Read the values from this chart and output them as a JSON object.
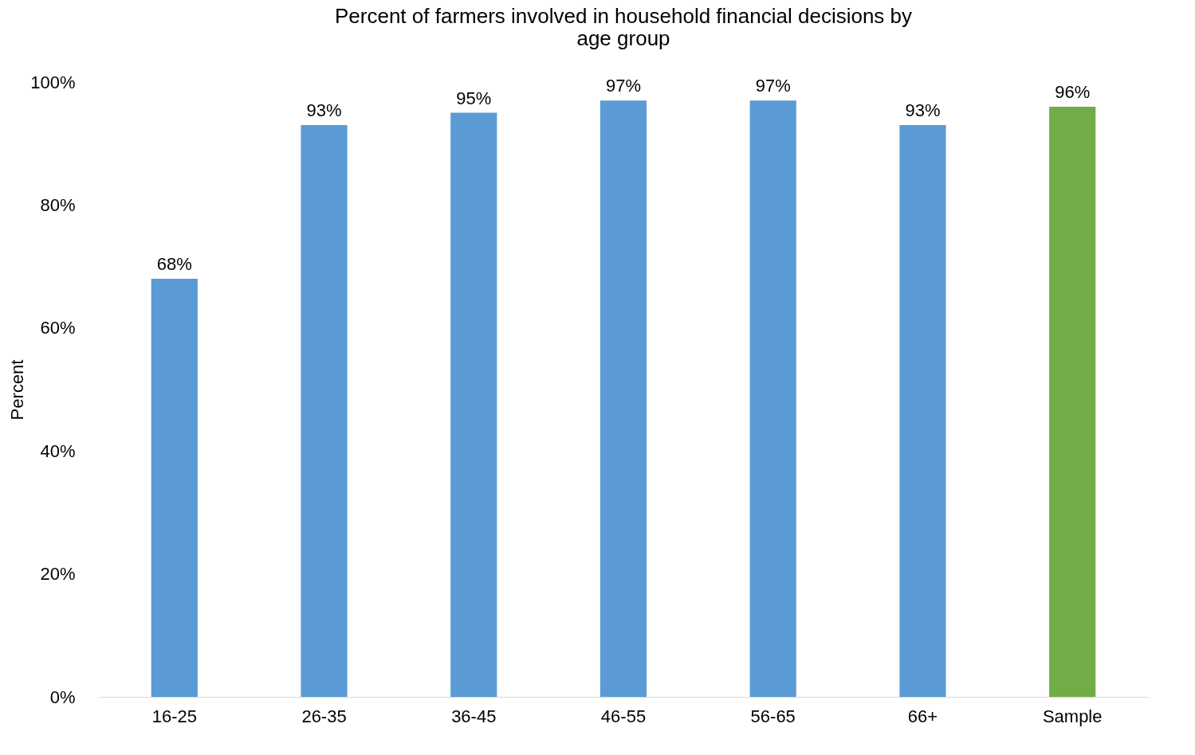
{
  "chart_data": {
    "type": "bar",
    "title": "Percent of farmers involved in household financial decisions by age group",
    "ylabel": "Percent",
    "categories": [
      "16-25",
      "26-35",
      "36-45",
      "46-55",
      "56-65",
      "66+",
      "Sample"
    ],
    "values": [
      68,
      93,
      95,
      97,
      97,
      93,
      96
    ],
    "colors": [
      "#5b9bd5",
      "#5b9bd5",
      "#5b9bd5",
      "#5b9bd5",
      "#5b9bd5",
      "#5b9bd5",
      "#70ad47"
    ],
    "value_labels": [
      "68%",
      "93%",
      "95%",
      "97%",
      "97%",
      "93%",
      "96%"
    ],
    "ylim": [
      0,
      100
    ],
    "yticks": [
      {
        "value": 0,
        "label": "0%"
      },
      {
        "value": 20,
        "label": "20%"
      },
      {
        "value": 40,
        "label": "40%"
      },
      {
        "value": 60,
        "label": "60%"
      },
      {
        "value": 80,
        "label": "80%"
      },
      {
        "value": 100,
        "label": "100%"
      }
    ],
    "grid": false
  }
}
